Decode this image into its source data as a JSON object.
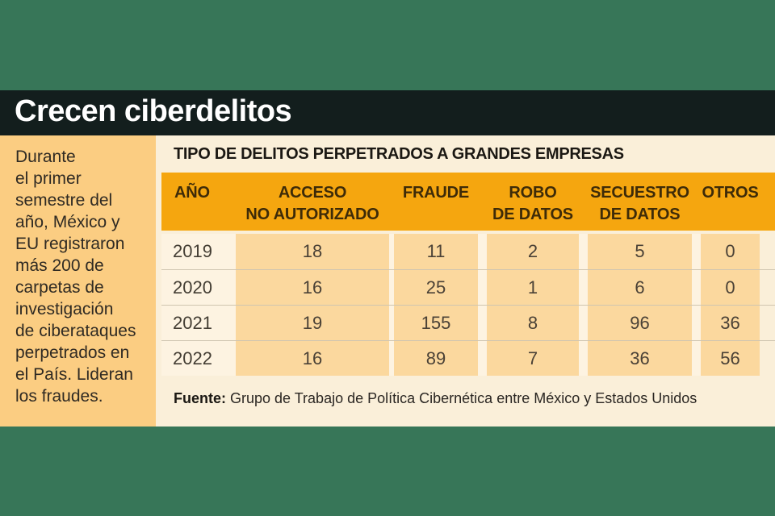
{
  "headline": "Crecen ciberdelitos",
  "sidebar": {
    "text": "Durante\nel primer\nsemestre del\naño, México y\nEU registraron\nmás 200 de\ncarpetas de\ninvestigación\nde ciberataques\nperpetrados en\nel País. Lideran\nlos fraudes."
  },
  "table": {
    "title": "TIPO DE DELITOS PERPETRADOS A GRANDES EMPRESAS",
    "columns": [
      "AÑO",
      "ACCESO\nNO AUTORIZADO",
      "FRAUDE",
      "ROBO\nDE DATOS",
      "SECUESTRO\nDE DATOS",
      "OTROS"
    ],
    "rows": [
      {
        "year": "2019",
        "values": [
          "18",
          "11",
          "2",
          "5",
          "0"
        ]
      },
      {
        "year": "2020",
        "values": [
          "16",
          "25",
          "1",
          "6",
          "0"
        ]
      },
      {
        "year": "2021",
        "values": [
          "19",
          "155",
          "8",
          "96",
          "36"
        ]
      },
      {
        "year": "2022",
        "values": [
          "16",
          "89",
          "7",
          "36",
          "56"
        ]
      }
    ],
    "source_label": "Fuente:",
    "source_text": " Grupo de Trabajo de Política Cibernética entre México y Estados Unidos"
  },
  "colors": {
    "background_green": "#377658",
    "headline_bar": "#131e1d",
    "headline_text": "#ffffff",
    "sidebar_orange": "#fbcd82",
    "panel_cream": "#faefd9",
    "header_orange": "#f5a60f",
    "cell_peach": "#fbd89e",
    "light_cream": "#fdf3e1"
  },
  "chart_data": {
    "type": "table",
    "title": "TIPO DE DELITOS PERPETRADOS A GRANDES EMPRESAS",
    "categories": [
      "2019",
      "2020",
      "2021",
      "2022"
    ],
    "series": [
      {
        "name": "ACCESO NO AUTORIZADO",
        "values": [
          18,
          16,
          19,
          16
        ]
      },
      {
        "name": "FRAUDE",
        "values": [
          11,
          25,
          155,
          89
        ]
      },
      {
        "name": "ROBO DE DATOS",
        "values": [
          2,
          1,
          8,
          7
        ]
      },
      {
        "name": "SECUESTRO DE DATOS",
        "values": [
          5,
          6,
          96,
          36
        ]
      },
      {
        "name": "OTROS",
        "values": [
          0,
          0,
          36,
          56
        ]
      }
    ],
    "source": "Fuente: Grupo de Trabajo de Política Cibernética entre México y Estados Unidos"
  }
}
